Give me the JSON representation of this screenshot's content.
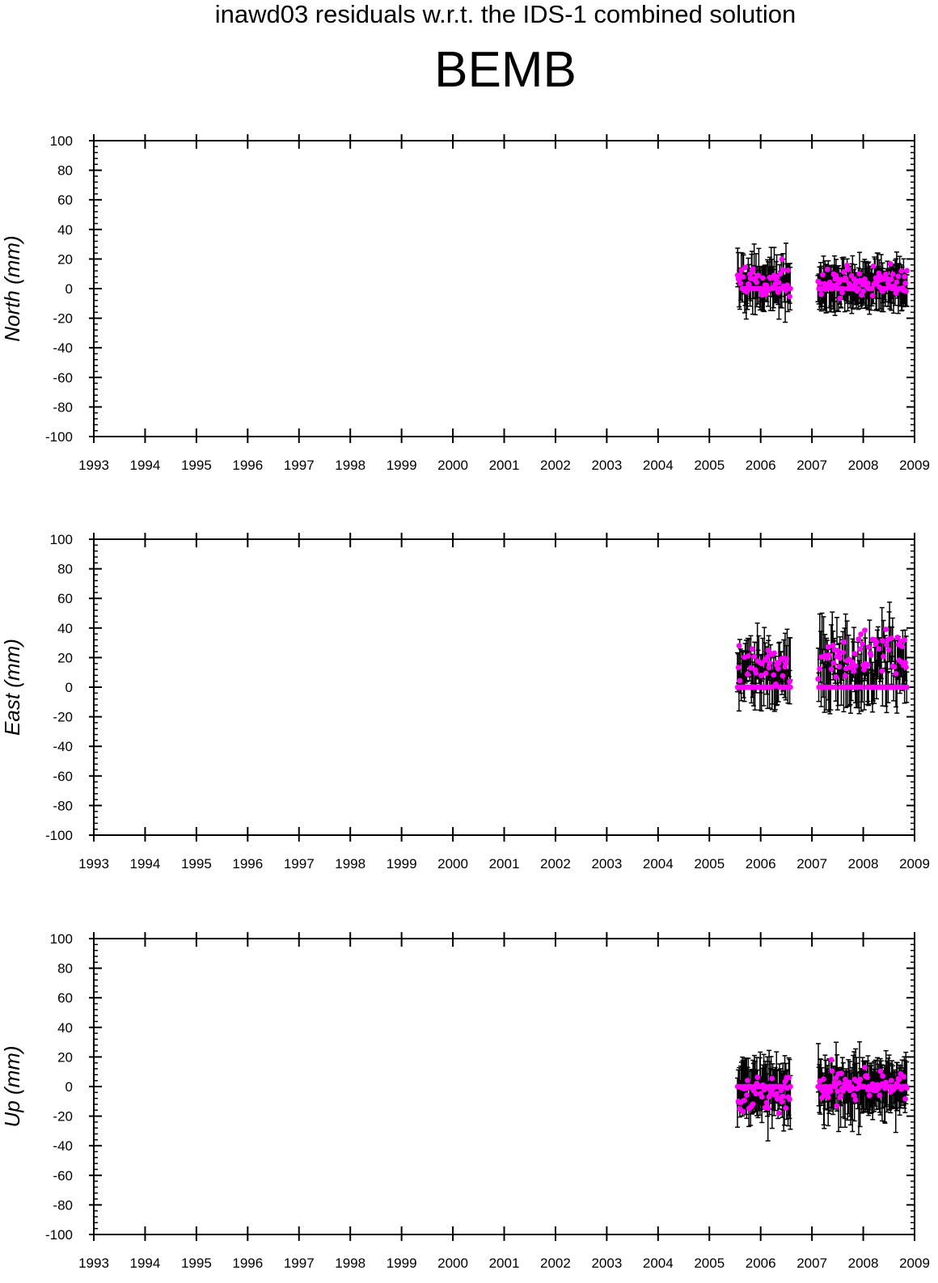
{
  "title": "inawd03 residuals w.r.t. the IDS-1 combined solution",
  "subtitle": "BEMB",
  "colors": {
    "points": "#ff00ff",
    "errorbars": "#000000",
    "axes": "#000000"
  },
  "chart_data": [
    {
      "type": "scatter",
      "ylabel": "North (mm)",
      "xlim": [
        1993,
        2009
      ],
      "ylim": [
        -100,
        100
      ],
      "xticks": [
        1993,
        1994,
        1995,
        1996,
        1997,
        1998,
        1999,
        2000,
        2001,
        2002,
        2003,
        2004,
        2005,
        2006,
        2007,
        2008,
        2009
      ],
      "yticks": [
        -100,
        -80,
        -60,
        -40,
        -20,
        0,
        20,
        40,
        60,
        80,
        100
      ],
      "xtick_labels": [
        "1993",
        "1994",
        "1995",
        "1996",
        "1997",
        "1998",
        "1999",
        "2000",
        "2001",
        "2002",
        "2003",
        "2004",
        "2005",
        "2006",
        "2007",
        "2008",
        "2009"
      ],
      "ytick_labels": [
        "-100",
        "-80",
        "-60",
        "-40",
        "-20",
        "0",
        "20",
        "40",
        "60",
        "80",
        "100"
      ],
      "segments": [
        {
          "x_start": 2005.55,
          "x_end": 2006.58,
          "count": 70,
          "center": 5,
          "spread": 10,
          "err": 13,
          "zero_fraction": 0.3
        },
        {
          "x_start": 2007.12,
          "x_end": 2008.85,
          "count": 115,
          "center": 4,
          "spread": 8,
          "err": 14,
          "zero_fraction": 0.35
        }
      ],
      "grid": false,
      "legend": "none"
    },
    {
      "type": "scatter",
      "ylabel": "East (mm)",
      "xlim": [
        1993,
        2009
      ],
      "ylim": [
        -100,
        100
      ],
      "xticks": [
        1993,
        1994,
        1995,
        1996,
        1997,
        1998,
        1999,
        2000,
        2001,
        2002,
        2003,
        2004,
        2005,
        2006,
        2007,
        2008,
        2009
      ],
      "yticks": [
        -100,
        -80,
        -60,
        -40,
        -20,
        0,
        20,
        40,
        60,
        80,
        100
      ],
      "xtick_labels": [
        "1993",
        "1994",
        "1995",
        "1996",
        "1997",
        "1998",
        "1999",
        "2000",
        "2001",
        "2002",
        "2003",
        "2004",
        "2005",
        "2006",
        "2007",
        "2008",
        "2009"
      ],
      "ytick_labels": [
        "-100",
        "-80",
        "-60",
        "-40",
        "-20",
        "0",
        "20",
        "40",
        "60",
        "80",
        "100"
      ],
      "segments": [
        {
          "x_start": 2005.55,
          "x_end": 2006.58,
          "count": 70,
          "center": 15,
          "spread": 12,
          "err": 14,
          "zero_fraction": 0.35
        },
        {
          "x_start": 2007.12,
          "x_end": 2008.85,
          "count": 115,
          "center": 22,
          "spread": 14,
          "err": 15,
          "zero_fraction": 0.4
        }
      ],
      "grid": false,
      "legend": "none"
    },
    {
      "type": "scatter",
      "ylabel": "Up (mm)",
      "xlim": [
        1993,
        2009
      ],
      "ylim": [
        -100,
        100
      ],
      "xticks": [
        1993,
        1994,
        1995,
        1996,
        1997,
        1998,
        1999,
        2000,
        2001,
        2002,
        2003,
        2004,
        2005,
        2006,
        2007,
        2008,
        2009
      ],
      "yticks": [
        -100,
        -80,
        -60,
        -40,
        -20,
        0,
        20,
        40,
        60,
        80,
        100
      ],
      "xtick_labels": [
        "1993",
        "1994",
        "1995",
        "1996",
        "1997",
        "1998",
        "1999",
        "2000",
        "2001",
        "2002",
        "2003",
        "2004",
        "2005",
        "2006",
        "2007",
        "2008",
        "2009"
      ],
      "ytick_labels": [
        "-100",
        "-80",
        "-60",
        "-40",
        "-20",
        "0",
        "20",
        "40",
        "60",
        "80",
        "100"
      ],
      "segments": [
        {
          "x_start": 2005.55,
          "x_end": 2006.58,
          "count": 70,
          "center": -5,
          "spread": 12,
          "err": 17,
          "zero_fraction": 0.3
        },
        {
          "x_start": 2007.12,
          "x_end": 2008.85,
          "count": 115,
          "center": 0,
          "spread": 11,
          "err": 16,
          "zero_fraction": 0.3
        }
      ],
      "grid": false,
      "legend": "none"
    }
  ]
}
